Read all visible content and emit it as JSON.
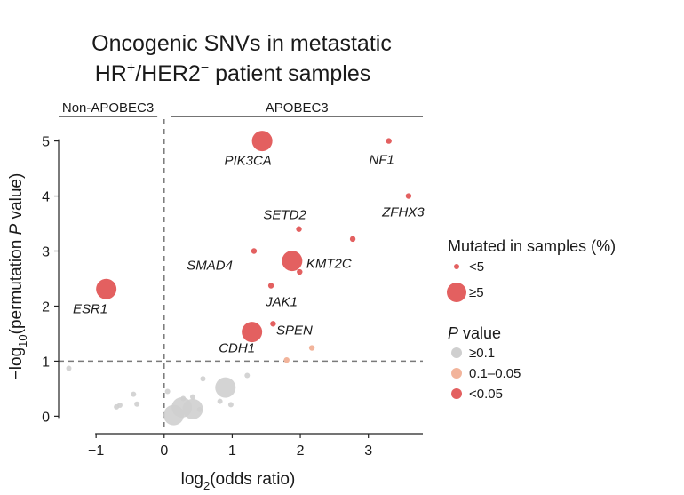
{
  "chart_data": {
    "type": "scatter",
    "title_line1": "Oncogenic SNVs in metastatic",
    "title_line2": {
      "a": "HR",
      "a_sup": "+",
      "b": "/HER2",
      "b_sup": "−",
      "c": " patient samples"
    },
    "xlabel": {
      "pre": "log",
      "sub": "2",
      "post": "(odds ratio)"
    },
    "ylabel": {
      "pre": "−log",
      "sub": "10",
      "mid": "(permutation ",
      "italic": "P",
      "post": " value)"
    },
    "xlim": [
      -1.55,
      3.8
    ],
    "ylim": [
      -0.22,
      5.3
    ],
    "xticks": [
      -1,
      0,
      1,
      2,
      3
    ],
    "yticks": [
      0,
      1,
      2,
      3,
      4,
      5
    ],
    "x_tick_labels": [
      "−1",
      "0",
      "1",
      "2",
      "3"
    ],
    "y_tick_labels": [
      "0",
      "1",
      "2",
      "3",
      "4",
      "5"
    ],
    "threshold_y": 1,
    "vline_x": 0,
    "groups": [
      {
        "label": "Non-APOBEC3",
        "x_from": -1.55,
        "x_to": -0.1
      },
      {
        "label": "APOBEC3",
        "x_from": 0.1,
        "x_to": 3.8
      }
    ],
    "colors": {
      "gray": "#cfcfcf",
      "light": "#f2b49b",
      "red": "#e36060",
      "dash": "#7a7a7a"
    },
    "points": [
      {
        "gene": "PIK3CA",
        "x": 1.44,
        "y": 5.0,
        "size": "≥5",
        "p": "<0.05"
      },
      {
        "gene": "NF1",
        "x": 3.3,
        "y": 5.0,
        "size": "<5",
        "p": "<0.05"
      },
      {
        "gene": "ZFHX3",
        "x": 3.59,
        "y": 4.0,
        "size": "<5",
        "p": "<0.05"
      },
      {
        "gene": "SETD2",
        "x": 1.98,
        "y": 3.4,
        "size": "<5",
        "p": "<0.05"
      },
      {
        "gene": "",
        "x": 2.77,
        "y": 3.22,
        "size": "<5",
        "p": "<0.05"
      },
      {
        "gene": "SMAD4",
        "x": 1.32,
        "y": 3.0,
        "size": "<5",
        "p": "<0.05"
      },
      {
        "gene": "KMT2C",
        "x": 1.88,
        "y": 2.82,
        "size": "≥5",
        "p": "<0.05"
      },
      {
        "gene": "",
        "x": 1.99,
        "y": 2.62,
        "size": "<5",
        "p": "<0.05"
      },
      {
        "gene": "JAK1",
        "x": 1.57,
        "y": 2.37,
        "size": "<5",
        "p": "<0.05"
      },
      {
        "gene": "ESR1",
        "x": -0.85,
        "y": 2.31,
        "size": "≥5",
        "p": "<0.05"
      },
      {
        "gene": "SPEN",
        "x": 1.6,
        "y": 1.68,
        "size": "<5",
        "p": "<0.05"
      },
      {
        "gene": "CDH1",
        "x": 1.29,
        "y": 1.53,
        "size": "≥5",
        "p": "<0.05"
      },
      {
        "gene": "",
        "x": 2.17,
        "y": 1.24,
        "size": "<5",
        "p": "0.1–0.05"
      },
      {
        "gene": "",
        "x": 1.8,
        "y": 1.02,
        "size": "<5",
        "p": "0.1–0.05"
      },
      {
        "gene": "",
        "x": -1.4,
        "y": 0.87,
        "size": "<5",
        "p": "≥0.1"
      },
      {
        "gene": "",
        "x": 0.57,
        "y": 0.68,
        "size": "<5",
        "p": "≥0.1"
      },
      {
        "gene": "",
        "x": 1.22,
        "y": 0.74,
        "size": "<5",
        "p": "≥0.1"
      },
      {
        "gene": "",
        "x": 0.05,
        "y": 0.45,
        "size": "<5",
        "p": "≥0.1"
      },
      {
        "gene": "",
        "x": 0.9,
        "y": 0.52,
        "size": "≥5",
        "p": "≥0.1"
      },
      {
        "gene": "",
        "x": -0.45,
        "y": 0.4,
        "size": "<5",
        "p": "≥0.1"
      },
      {
        "gene": "",
        "x": -0.4,
        "y": 0.22,
        "size": "<5",
        "p": "≥0.1"
      },
      {
        "gene": "",
        "x": -0.65,
        "y": 0.2,
        "size": "<5",
        "p": "≥0.1"
      },
      {
        "gene": "",
        "x": -0.7,
        "y": 0.17,
        "size": "<5",
        "p": "≥0.1"
      },
      {
        "gene": "",
        "x": 0.28,
        "y": 0.32,
        "size": "<5",
        "p": "≥0.1"
      },
      {
        "gene": "",
        "x": 0.42,
        "y": 0.35,
        "size": "<5",
        "p": "≥0.1"
      },
      {
        "gene": "",
        "x": 0.52,
        "y": 0.12,
        "size": "<5",
        "p": "≥0.1"
      },
      {
        "gene": "",
        "x": 0.82,
        "y": 0.27,
        "size": "<5",
        "p": "≥0.1"
      },
      {
        "gene": "",
        "x": 0.98,
        "y": 0.21,
        "size": "<5",
        "p": "≥0.1"
      },
      {
        "gene": "",
        "x": 0.26,
        "y": 0.16,
        "size": "≥5",
        "p": "≥0.1"
      },
      {
        "gene": "",
        "x": 0.42,
        "y": 0.13,
        "size": "≥5",
        "p": "≥0.1"
      },
      {
        "gene": "",
        "x": 0.14,
        "y": 0.02,
        "size": "≥5",
        "p": "≥0.1"
      }
    ],
    "legend_size": {
      "title": "Mutated in samples (%)",
      "items": [
        "<5",
        "≥5"
      ]
    },
    "legend_p": {
      "title_italic": "P",
      "title_rest": " value",
      "items": [
        "≥0.1",
        "0.1–0.05",
        "<0.05"
      ]
    },
    "legend_placement": "right",
    "grid": false
  }
}
